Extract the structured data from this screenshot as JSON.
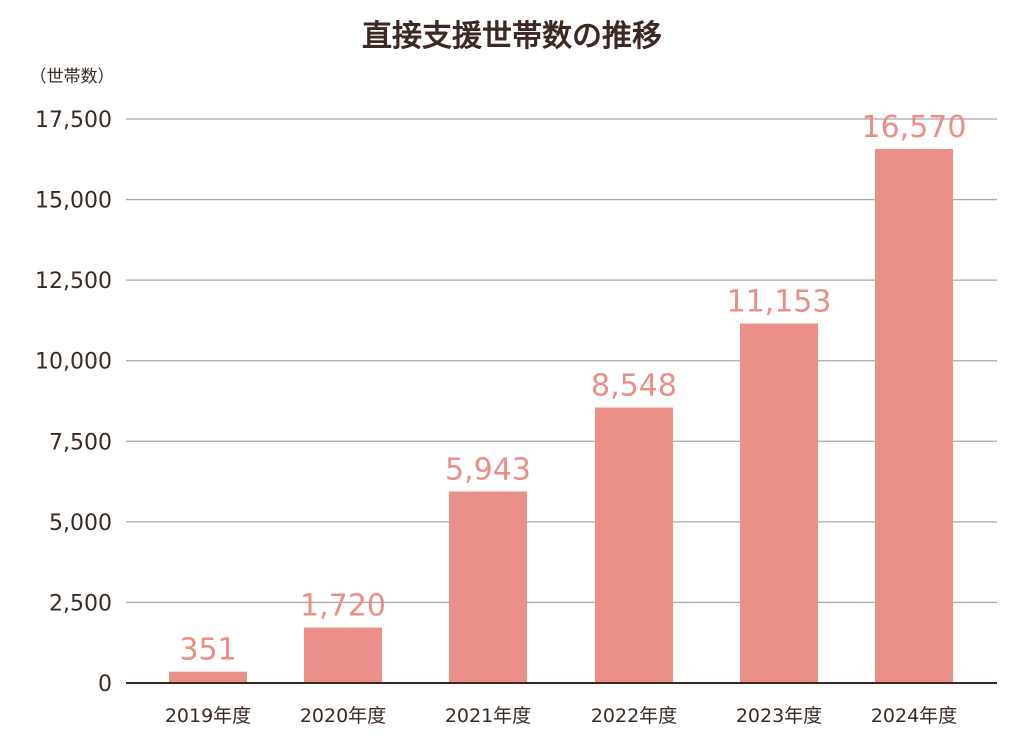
{
  "chart_data": {
    "type": "bar",
    "title": "直接支援世帯数の推移",
    "ylabel": "（世帯数）",
    "xlabel": "",
    "categories": [
      "2019年度",
      "2020年度",
      "2021年度",
      "2022年度",
      "2023年度",
      "2024年度"
    ],
    "values": [
      351,
      1720,
      5943,
      8548,
      11153,
      16570
    ],
    "value_labels": [
      "351",
      "1,720",
      "5,943",
      "8,548",
      "11,153",
      "16,570"
    ],
    "ylim": [
      0,
      17500
    ],
    "yticks": [
      0,
      2500,
      5000,
      7500,
      10000,
      12500,
      15000,
      17500
    ],
    "ytick_labels": [
      "0",
      "2,500",
      "5,000",
      "7,500",
      "10,000",
      "12,500",
      "15,000",
      "17,500"
    ],
    "grid": true,
    "colors": {
      "bar": "#eb9088",
      "data_label": "#eb8f86",
      "text": "#3a2a23",
      "grid": "#a9a9a9"
    }
  }
}
